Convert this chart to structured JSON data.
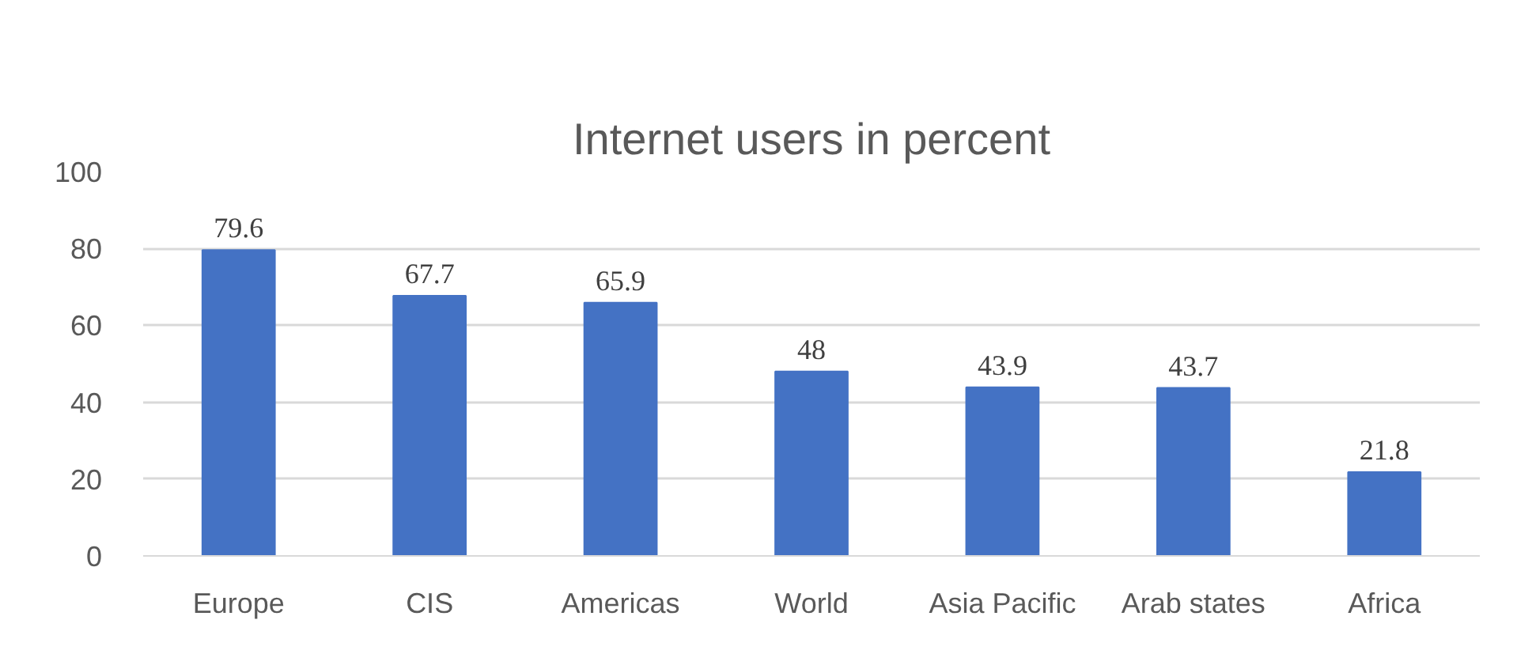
{
  "chart_data": {
    "type": "bar",
    "title": "Internet users in percent",
    "categories": [
      "Europe",
      "CIS",
      "Americas",
      "World",
      "Asia Pacific",
      "Arab states",
      "Africa"
    ],
    "values": [
      79.6,
      67.7,
      65.9,
      48,
      43.9,
      43.7,
      21.8
    ],
    "color": "#4472c4",
    "ylim": [
      0,
      100
    ],
    "yticks": [
      0,
      20,
      40,
      60,
      80,
      100
    ],
    "grid": "y",
    "data_labels": true
  }
}
